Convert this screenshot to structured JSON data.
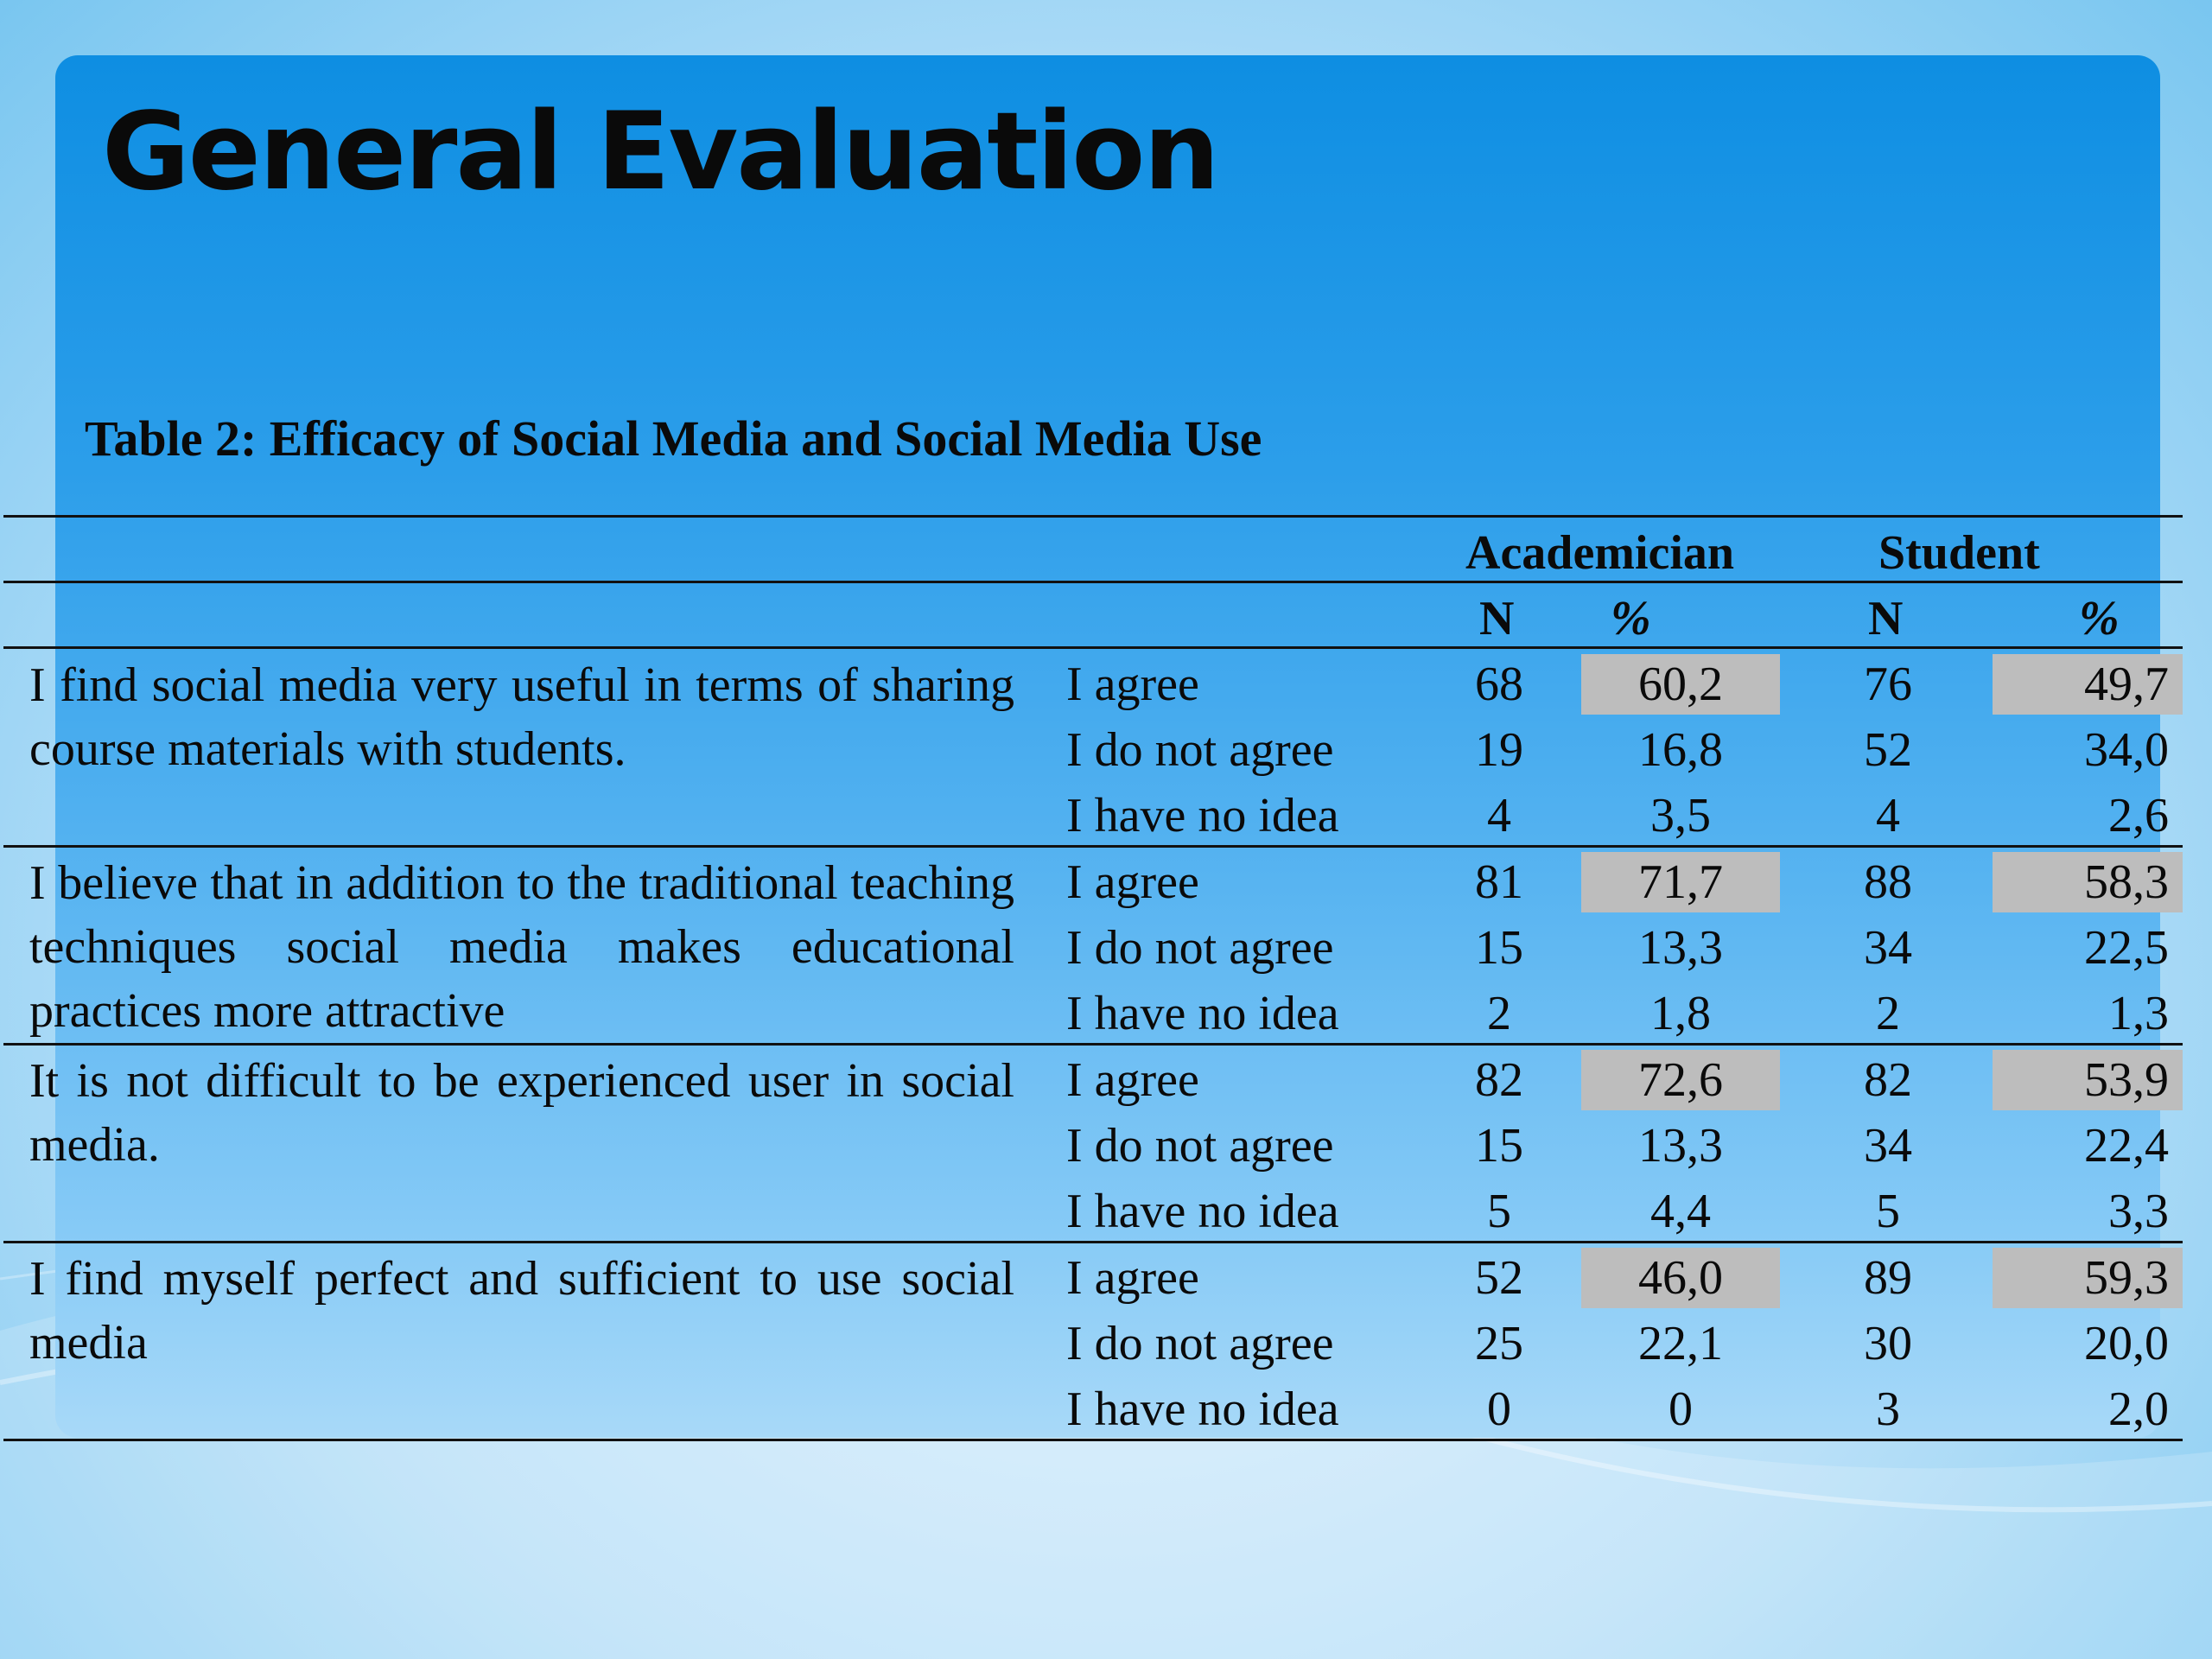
{
  "slide": {
    "title": "General Evaluation",
    "caption": "Table 2:  Efficacy of Social Media and Social Media Use"
  },
  "table": {
    "groups": [
      "Academician",
      "Student"
    ],
    "subheaders": [
      "N",
      "%",
      "N",
      "%"
    ],
    "rows": [
      {
        "statement": "I find social media very useful in terms of sharing course materials with students.",
        "responses": [
          {
            "label": "I agree",
            "a_n": "68",
            "a_pct": "60,2",
            "s_n": "76",
            "s_pct": "49,7"
          },
          {
            "label": "I do not agree",
            "a_n": "19",
            "a_pct": "16,8",
            "s_n": "52",
            "s_pct": "34,0"
          },
          {
            "label": "I have no idea",
            "a_n": "4",
            "a_pct": "3,5",
            "s_n": "4",
            "s_pct": "2,6"
          }
        ]
      },
      {
        "statement": "I believe that in addition to the traditional teaching techniques social media makes educational practices more attractive",
        "responses": [
          {
            "label": "I agree",
            "a_n": "81",
            "a_pct": "71,7",
            "s_n": "88",
            "s_pct": "58,3"
          },
          {
            "label": "I do not agree",
            "a_n": "15",
            "a_pct": "13,3",
            "s_n": "34",
            "s_pct": "22,5"
          },
          {
            "label": "I have no idea",
            "a_n": "2",
            "a_pct": "1,8",
            "s_n": "2",
            "s_pct": "1,3"
          }
        ]
      },
      {
        "statement": "It is not difficult to be experienced user in social media.",
        "responses": [
          {
            "label": "I agree",
            "a_n": "82",
            "a_pct": "72,6",
            "s_n": "82",
            "s_pct": "53,9"
          },
          {
            "label": "I do not agree",
            "a_n": "15",
            "a_pct": "13,3",
            "s_n": "34",
            "s_pct": "22,4"
          },
          {
            "label": "I have no idea",
            "a_n": "5",
            "a_pct": "4,4",
            "s_n": "5",
            "s_pct": "3,3"
          }
        ]
      },
      {
        "statement": "I find myself perfect and sufficient to use social media",
        "responses": [
          {
            "label": "I agree",
            "a_n": "52",
            "a_pct": "46,0",
            "s_n": "89",
            "s_pct": "59,3"
          },
          {
            "label": "I do not agree",
            "a_n": "25",
            "a_pct": "22,1",
            "s_n": "30",
            "s_pct": "20,0"
          },
          {
            "label": "I have no idea",
            "a_n": "0",
            "a_pct": "0",
            "s_n": "3",
            "s_pct": "2,0"
          }
        ]
      }
    ]
  },
  "colors": {
    "panel_top": "#0e8ee2",
    "panel_bottom": "#a8d9f8",
    "highlight": "#bdbdbd",
    "text": "#0a0a0a"
  }
}
